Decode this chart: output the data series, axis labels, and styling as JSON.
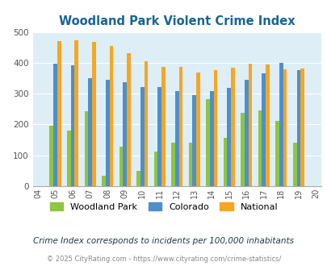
{
  "title": "Woodland Park Violent Crime Index",
  "years": [
    2004,
    2005,
    2006,
    2007,
    2008,
    2009,
    2010,
    2011,
    2012,
    2013,
    2014,
    2015,
    2016,
    2017,
    2018,
    2019,
    2020
  ],
  "woodland_park": [
    null,
    197,
    180,
    242,
    33,
    127,
    50,
    112,
    141,
    142,
    283,
    157,
    237,
    246,
    211,
    141,
    null
  ],
  "colorado": [
    null,
    397,
    393,
    350,
    346,
    338,
    321,
    321,
    309,
    296,
    309,
    320,
    346,
    366,
    400,
    376,
    null
  ],
  "national": [
    null,
    469,
    473,
    467,
    455,
    432,
    405,
    387,
    387,
    368,
    376,
    383,
    398,
    394,
    379,
    381,
    null
  ],
  "color_wp": "#8dc63f",
  "color_co": "#4d8fcc",
  "color_nat": "#f5a623",
  "bg_color": "#ddeef6",
  "ylim": [
    0,
    500
  ],
  "yticks": [
    0,
    100,
    200,
    300,
    400,
    500
  ],
  "subtitle": "Crime Index corresponds to incidents per 100,000 inhabitants",
  "footer": "© 2025 CityRating.com - https://www.cityrating.com/crime-statistics/",
  "title_color": "#1a6496",
  "subtitle_color": "#1a3a4a",
  "footer_color": "#888888"
}
